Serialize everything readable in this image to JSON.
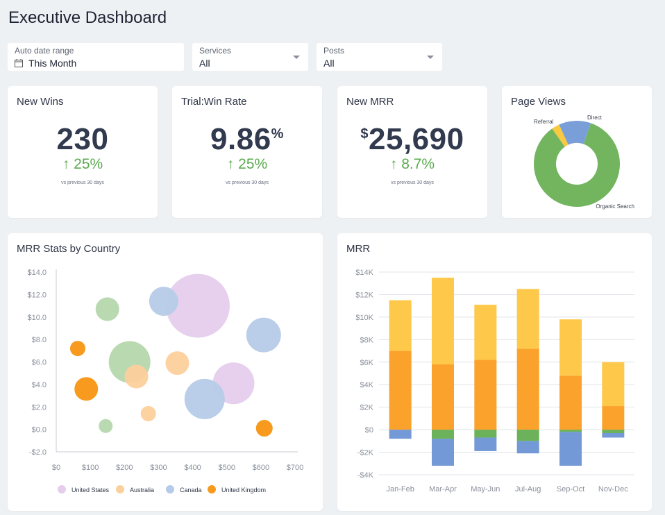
{
  "page": {
    "title": "Executive Dashboard"
  },
  "filters": {
    "date": {
      "label": "Auto date range",
      "value": "This Month",
      "icon": "calendar-icon"
    },
    "services": {
      "label": "Services",
      "value": "All",
      "icon": "chevron-down-icon"
    },
    "posts": {
      "label": "Posts",
      "value": "All",
      "icon": "chevron-down-icon"
    }
  },
  "kpis": {
    "new_wins": {
      "title": "New Wins",
      "value": "230",
      "prefix": "",
      "suffix": "",
      "change": "↑ 25%",
      "sub": "vs previous 30 days"
    },
    "trial_win_rate": {
      "title": "Trial:Win Rate",
      "value": "9.86",
      "prefix": "",
      "suffix": "%",
      "change": "↑ 25%",
      "sub": "vs previous 30 days"
    },
    "new_mrr": {
      "title": "New MRR",
      "value": "25,690",
      "prefix": "$",
      "suffix": "",
      "change": "↑ 8.7%",
      "sub": "vs previous 30 days"
    }
  },
  "colors": {
    "positive": "#5aaa4f",
    "united_states": "#e5cdec",
    "australia": "#fcd09c",
    "canada": "#b6cbe8",
    "united_kingdom": "#f79a1d",
    "green_bubble": "#b5d7ad",
    "bar_yellow": "#fec84a",
    "bar_orange": "#fba22c",
    "bar_green": "#6bb25a",
    "bar_blue": "#7399d6",
    "pie_green": "#73b55f",
    "pie_blue": "#7a9fd8",
    "pie_yellow": "#f9c940"
  },
  "chart_data": [
    {
      "type": "pie",
      "title": "Page Views",
      "donut": true,
      "slices": [
        {
          "label": "Organic Search",
          "value": 85,
          "color": "#73b55f"
        },
        {
          "label": "Referral",
          "value": 3,
          "color": "#f9c940"
        },
        {
          "label": "Direct",
          "value": 12,
          "color": "#7a9fd8"
        }
      ]
    },
    {
      "type": "scatter",
      "bubble": true,
      "title": "MRR Stats by Country",
      "xlim": [
        0,
        700
      ],
      "ylim": [
        -2,
        14
      ],
      "xticks": [
        0,
        100,
        200,
        300,
        400,
        500,
        600,
        700
      ],
      "yticks": [
        -2,
        0,
        2,
        4,
        6,
        8,
        10,
        12,
        14
      ],
      "xtick_labels": [
        "$0",
        "$100",
        "$200",
        "$300",
        "$400",
        "$500",
        "$600",
        "$700"
      ],
      "ytick_labels": [
        "-$2.0",
        "$0.0",
        "$2.0",
        "$4.0",
        "$6.0",
        "$8.0",
        "$10.0",
        "$12.0",
        "$14.0"
      ],
      "legend": [
        "United States",
        "Australia",
        "Canada",
        "United Kingdom"
      ],
      "legend_position": "bottom",
      "points": [
        {
          "x": 415,
          "y": 11.0,
          "size": 46,
          "color": "#e5cdec"
        },
        {
          "x": 520,
          "y": 4.1,
          "size": 30,
          "color": "#e5cdec"
        },
        {
          "x": 150,
          "y": 10.7,
          "size": 17,
          "color": "#b5d7ad"
        },
        {
          "x": 215,
          "y": 6.0,
          "size": 30,
          "color": "#b5d7ad"
        },
        {
          "x": 145,
          "y": 0.3,
          "size": 10,
          "color": "#b5d7ad"
        },
        {
          "x": 315,
          "y": 11.4,
          "size": 21,
          "color": "#b6cbe8"
        },
        {
          "x": 608,
          "y": 8.4,
          "size": 25,
          "color": "#b6cbe8"
        },
        {
          "x": 435,
          "y": 2.7,
          "size": 29,
          "color": "#b6cbe8"
        },
        {
          "x": 355,
          "y": 5.9,
          "size": 17,
          "color": "#fcd09c"
        },
        {
          "x": 235,
          "y": 4.7,
          "size": 17,
          "color": "#fcd09c"
        },
        {
          "x": 270,
          "y": 1.4,
          "size": 11,
          "color": "#fcd09c"
        },
        {
          "x": 63,
          "y": 7.2,
          "size": 11,
          "color": "#f79a1d"
        },
        {
          "x": 88,
          "y": 3.6,
          "size": 17,
          "color": "#f79a1d"
        },
        {
          "x": 610,
          "y": 0.1,
          "size": 12,
          "color": "#f79a1d"
        }
      ]
    },
    {
      "type": "bar",
      "stacked": true,
      "title": "MRR",
      "categories": [
        "Jan-Feb",
        "Mar-Apr",
        "May-Jun",
        "Jul-Aug",
        "Sep-Oct",
        "Nov-Dec"
      ],
      "ylim": [
        -4000,
        14000
      ],
      "yticks": [
        -4000,
        -2000,
        0,
        2000,
        4000,
        6000,
        8000,
        10000,
        12000,
        14000
      ],
      "ytick_labels": [
        "-$4K",
        "-$2K",
        "$0",
        "$2K",
        "$4K",
        "$6K",
        "$8K",
        "$10K",
        "$12K",
        "$14K"
      ],
      "series": [
        {
          "values": [
            7000,
            5800,
            6200,
            7200,
            4800,
            2100
          ],
          "color": "#fba22c"
        },
        {
          "values": [
            4500,
            7700,
            4900,
            5300,
            5000,
            3900
          ],
          "color": "#fec84a"
        },
        {
          "values": [
            0,
            -800,
            -700,
            -1000,
            -200,
            -300
          ],
          "color": "#6bb25a"
        },
        {
          "values": [
            -800,
            -2400,
            -1200,
            -1100,
            -3000,
            -400
          ],
          "color": "#7399d6"
        }
      ]
    }
  ]
}
